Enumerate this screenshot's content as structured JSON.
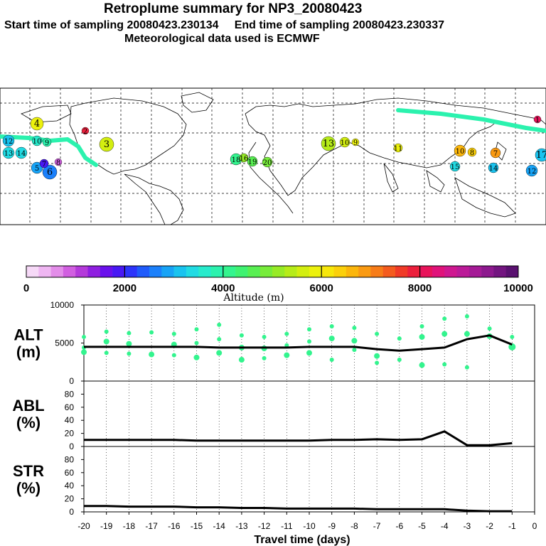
{
  "title": "Retroplume summary for NP3_20080423",
  "subtitle_start_label": "Start time of sampling 20080423.230134",
  "subtitle_end_label": "End time of sampling 20080423.230337",
  "subtitle_met": "Meteorological data used is ECMWF",
  "colorbar": {
    "label": "Altitude (m)",
    "ticks": [
      "0",
      "2000",
      "4000",
      "6000",
      "8000",
      "10000"
    ],
    "colors": [
      "#f6d9f7",
      "#efb6f2",
      "#e38de9",
      "#d15fe0",
      "#b43ada",
      "#8f1fe0",
      "#6a10ec",
      "#4818f4",
      "#2c34fb",
      "#1f5bfb",
      "#1b80fb",
      "#17a3f6",
      "#19c3ef",
      "#21dbe3",
      "#27ebcc",
      "#2bf2ae",
      "#33f48e",
      "#3ff271",
      "#58ef52",
      "#77ec3a",
      "#97eb26",
      "#b6ec19",
      "#d3ee10",
      "#ecf10d",
      "#f7e70b",
      "#fbd00b",
      "#fbb60c",
      "#fa9a12",
      "#f77c18",
      "#f45b1e",
      "#f03a27",
      "#ec1f3c",
      "#e8135a",
      "#e0127a",
      "#cf1790",
      "#bb1a98",
      "#a51a96",
      "#8d198e",
      "#731580",
      "#5a1170"
    ]
  },
  "map": {
    "markers": [
      {
        "n": "4",
        "c": "#ecf10d"
      },
      {
        "n": "3",
        "c": "#d3ee10"
      },
      {
        "n": "5",
        "c": "#17a3f6"
      },
      {
        "n": "6",
        "c": "#1b80fb"
      },
      {
        "n": "7",
        "c": "#4818f4"
      },
      {
        "n": "12",
        "c": "#19c3ef"
      },
      {
        "n": "13",
        "c": "#21dbe3"
      },
      {
        "n": "14",
        "c": "#21dbe3"
      },
      {
        "n": "10",
        "c": "#27ebcc"
      },
      {
        "n": "9",
        "c": "#2bf2ae"
      },
      {
        "n": "8",
        "c": "#d15fe0"
      },
      {
        "n": "2",
        "c": "#ec1f3c"
      },
      {
        "n": "18",
        "c": "#33f48e"
      },
      {
        "n": "19",
        "c": "#58ef52"
      },
      {
        "n": "20",
        "c": "#77ec3a"
      },
      {
        "n": "16",
        "c": "#97eb26"
      },
      {
        "n": "13",
        "c": "#b6ec19"
      },
      {
        "n": "10",
        "c": "#d3ee10"
      },
      {
        "n": "9",
        "c": "#ecf10d"
      },
      {
        "n": "11",
        "c": "#ecf10d"
      },
      {
        "n": "10",
        "c": "#fbb60c"
      },
      {
        "n": "8",
        "c": "#fbd00b"
      },
      {
        "n": "7",
        "c": "#fa9a12"
      },
      {
        "n": "17",
        "c": "#19c3ef"
      },
      {
        "n": "15",
        "c": "#21dbe3"
      },
      {
        "n": "14",
        "c": "#19c3ef"
      },
      {
        "n": "12",
        "c": "#17a3f6"
      },
      {
        "n": "1",
        "c": "#e8135a"
      }
    ]
  },
  "chart_data": [
    {
      "type": "line",
      "panel": "ALT",
      "label_line1": "ALT",
      "label_line2": "(m)",
      "x": [
        -20,
        -19,
        -18,
        -17,
        -16,
        -15,
        -14,
        -13,
        -12,
        -11,
        -10,
        -9,
        -8,
        -7,
        -6,
        -5,
        -4,
        -3,
        -2,
        -1
      ],
      "values": [
        4500,
        4500,
        4500,
        4500,
        4500,
        4500,
        4400,
        4400,
        4400,
        4400,
        4500,
        4500,
        4500,
        4200,
        4000,
        4200,
        4400,
        5500,
        6000,
        4800
      ],
      "ylim": [
        0,
        10000
      ],
      "yticks": [
        "0",
        "5000",
        "10000"
      ],
      "scatter": {
        "x": [
          -20,
          -20,
          -20,
          -19,
          -19,
          -19,
          -18,
          -18,
          -18,
          -17,
          -17,
          -16,
          -16,
          -16,
          -15,
          -15,
          -15,
          -14,
          -14,
          -14,
          -13,
          -13,
          -13,
          -12,
          -12,
          -12,
          -11,
          -11,
          -11,
          -10,
          -10,
          -10,
          -9,
          -9,
          -9,
          -8,
          -8,
          -8,
          -7,
          -7,
          -7,
          -6,
          -6,
          -5,
          -5,
          -5,
          -4,
          -4,
          -4,
          -3,
          -3,
          -3,
          -2,
          -2,
          -1,
          -1
        ],
        "y": [
          5800,
          4400,
          3800,
          6500,
          5200,
          3700,
          6300,
          4900,
          3600,
          6400,
          3500,
          6200,
          4800,
          3400,
          6800,
          5000,
          3100,
          7400,
          5500,
          3700,
          6000,
          4400,
          2800,
          5800,
          4300,
          3000,
          6200,
          4700,
          3400,
          6800,
          5200,
          3700,
          7200,
          5600,
          2800,
          7000,
          5300,
          4100,
          6200,
          3300,
          2400,
          5600,
          2800,
          7200,
          5800,
          2100,
          8200,
          6200,
          2200,
          8500,
          6200,
          1800,
          6900,
          5900,
          5800,
          4500
        ],
        "s": [
          3,
          3,
          4,
          3,
          4,
          3,
          3,
          4,
          3,
          3,
          4,
          3,
          4,
          3,
          3,
          3,
          4,
          3,
          3,
          4,
          3,
          4,
          4,
          3,
          4,
          3,
          3,
          3,
          4,
          3,
          3,
          4,
          3,
          4,
          3,
          3,
          4,
          3,
          3,
          4,
          3,
          3,
          3,
          3,
          4,
          4,
          3,
          4,
          3,
          3,
          4,
          3,
          3,
          4,
          3,
          5
        ]
      }
    },
    {
      "type": "line",
      "panel": "ABL",
      "label_line1": "ABL",
      "label_line2": "(%)",
      "x": [
        -20,
        -19,
        -18,
        -17,
        -16,
        -15,
        -14,
        -13,
        -12,
        -11,
        -10,
        -9,
        -8,
        -7,
        -6,
        -5,
        -4,
        -3,
        -2,
        -1
      ],
      "values": [
        10,
        10,
        10,
        10,
        10,
        9,
        9,
        9,
        9,
        9,
        9,
        10,
        10,
        11,
        10,
        11,
        23,
        2,
        2,
        5
      ],
      "ylim": [
        0,
        100
      ],
      "yticks": [
        "0",
        "20",
        "40",
        "60",
        "80"
      ]
    },
    {
      "type": "line",
      "panel": "STR",
      "label_line1": "STR",
      "label_line2": "(%)",
      "x": [
        -20,
        -19,
        -18,
        -17,
        -16,
        -15,
        -14,
        -13,
        -12,
        -11,
        -10,
        -9,
        -8,
        -7,
        -6,
        -5,
        -4,
        -3,
        -2,
        -1
      ],
      "values": [
        9,
        9,
        8,
        8,
        8,
        7,
        7,
        6,
        6,
        5,
        5,
        5,
        5,
        4,
        4,
        4,
        4,
        2,
        1,
        1
      ],
      "ylim": [
        0,
        100
      ],
      "yticks": [
        "0",
        "20",
        "40",
        "60",
        "80"
      ],
      "xticks": [
        "-20",
        "-19",
        "-18",
        "-17",
        "-16",
        "-15",
        "-14",
        "-13",
        "-12",
        "-11",
        "-10",
        "-9",
        "-8",
        "-7",
        "-6",
        "-5",
        "-4",
        "-3",
        "-2",
        "-1",
        "0"
      ],
      "xlabel": "Travel time (days)"
    }
  ]
}
